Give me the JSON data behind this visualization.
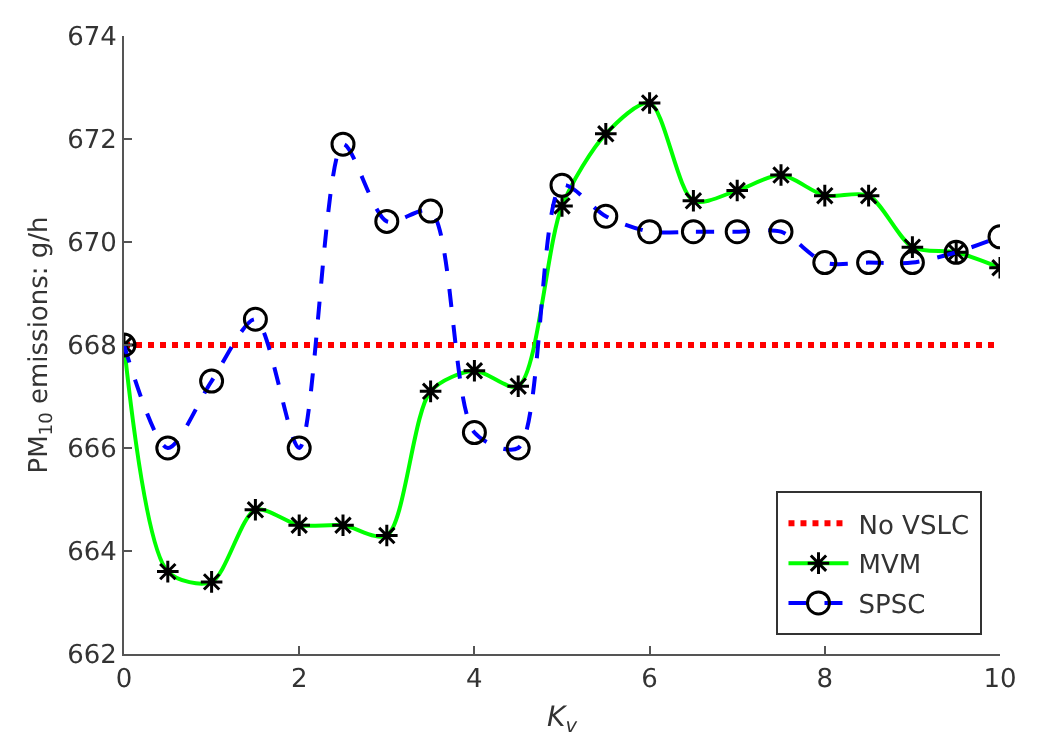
{
  "chart_data": {
    "type": "line",
    "xlabel": "K$_{v}$",
    "ylabel": "PM$_{10}$ emissions: g/h",
    "x": [
      0,
      0.5,
      1,
      1.5,
      2,
      2.5,
      3,
      3.5,
      4,
      4.5,
      5,
      5.5,
      6,
      6.5,
      7,
      7.5,
      8,
      8.5,
      9,
      9.5,
      10
    ],
    "series": [
      {
        "name": "No VSLC",
        "color": "#ff0000",
        "line_style": "dotted",
        "x": [
          0,
          10
        ],
        "values": [
          668,
          668
        ]
      },
      {
        "name": "MVM",
        "color": "#00ff00",
        "line_style": "solid",
        "marker": "cross",
        "values": [
          668,
          663.6,
          663.4,
          664.8,
          664.5,
          664.5,
          664.3,
          667.1,
          667.5,
          667.2,
          670.7,
          672.1,
          672.7,
          670.8,
          671.0,
          671.3,
          670.9,
          670.9,
          669.9,
          669.8,
          669.5
        ]
      },
      {
        "name": "SPSC",
        "color": "#0000ff",
        "line_style": "dashed",
        "marker": "circle",
        "values": [
          668,
          666.0,
          667.3,
          668.5,
          666.0,
          671.9,
          670.4,
          670.6,
          666.3,
          666.0,
          671.1,
          670.5,
          670.2,
          670.2,
          670.2,
          670.2,
          669.6,
          669.6,
          669.6,
          669.8,
          670.1
        ]
      }
    ],
    "xlim": [
      0,
      10
    ],
    "xticks": [
      0,
      2,
      4,
      6,
      8,
      10
    ],
    "ylim": [
      662,
      674
    ],
    "yticks": [
      662,
      664,
      666,
      668,
      670,
      672,
      674
    ],
    "legend": "bottom right"
  }
}
